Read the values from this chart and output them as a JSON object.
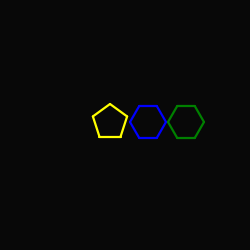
{
  "background_color": "#080808",
  "bond_color": "#d8d8d8",
  "oxygen_color": "#ff2200",
  "lw": 1.5,
  "figsize": [
    2.5,
    2.5
  ],
  "dpi": 100
}
